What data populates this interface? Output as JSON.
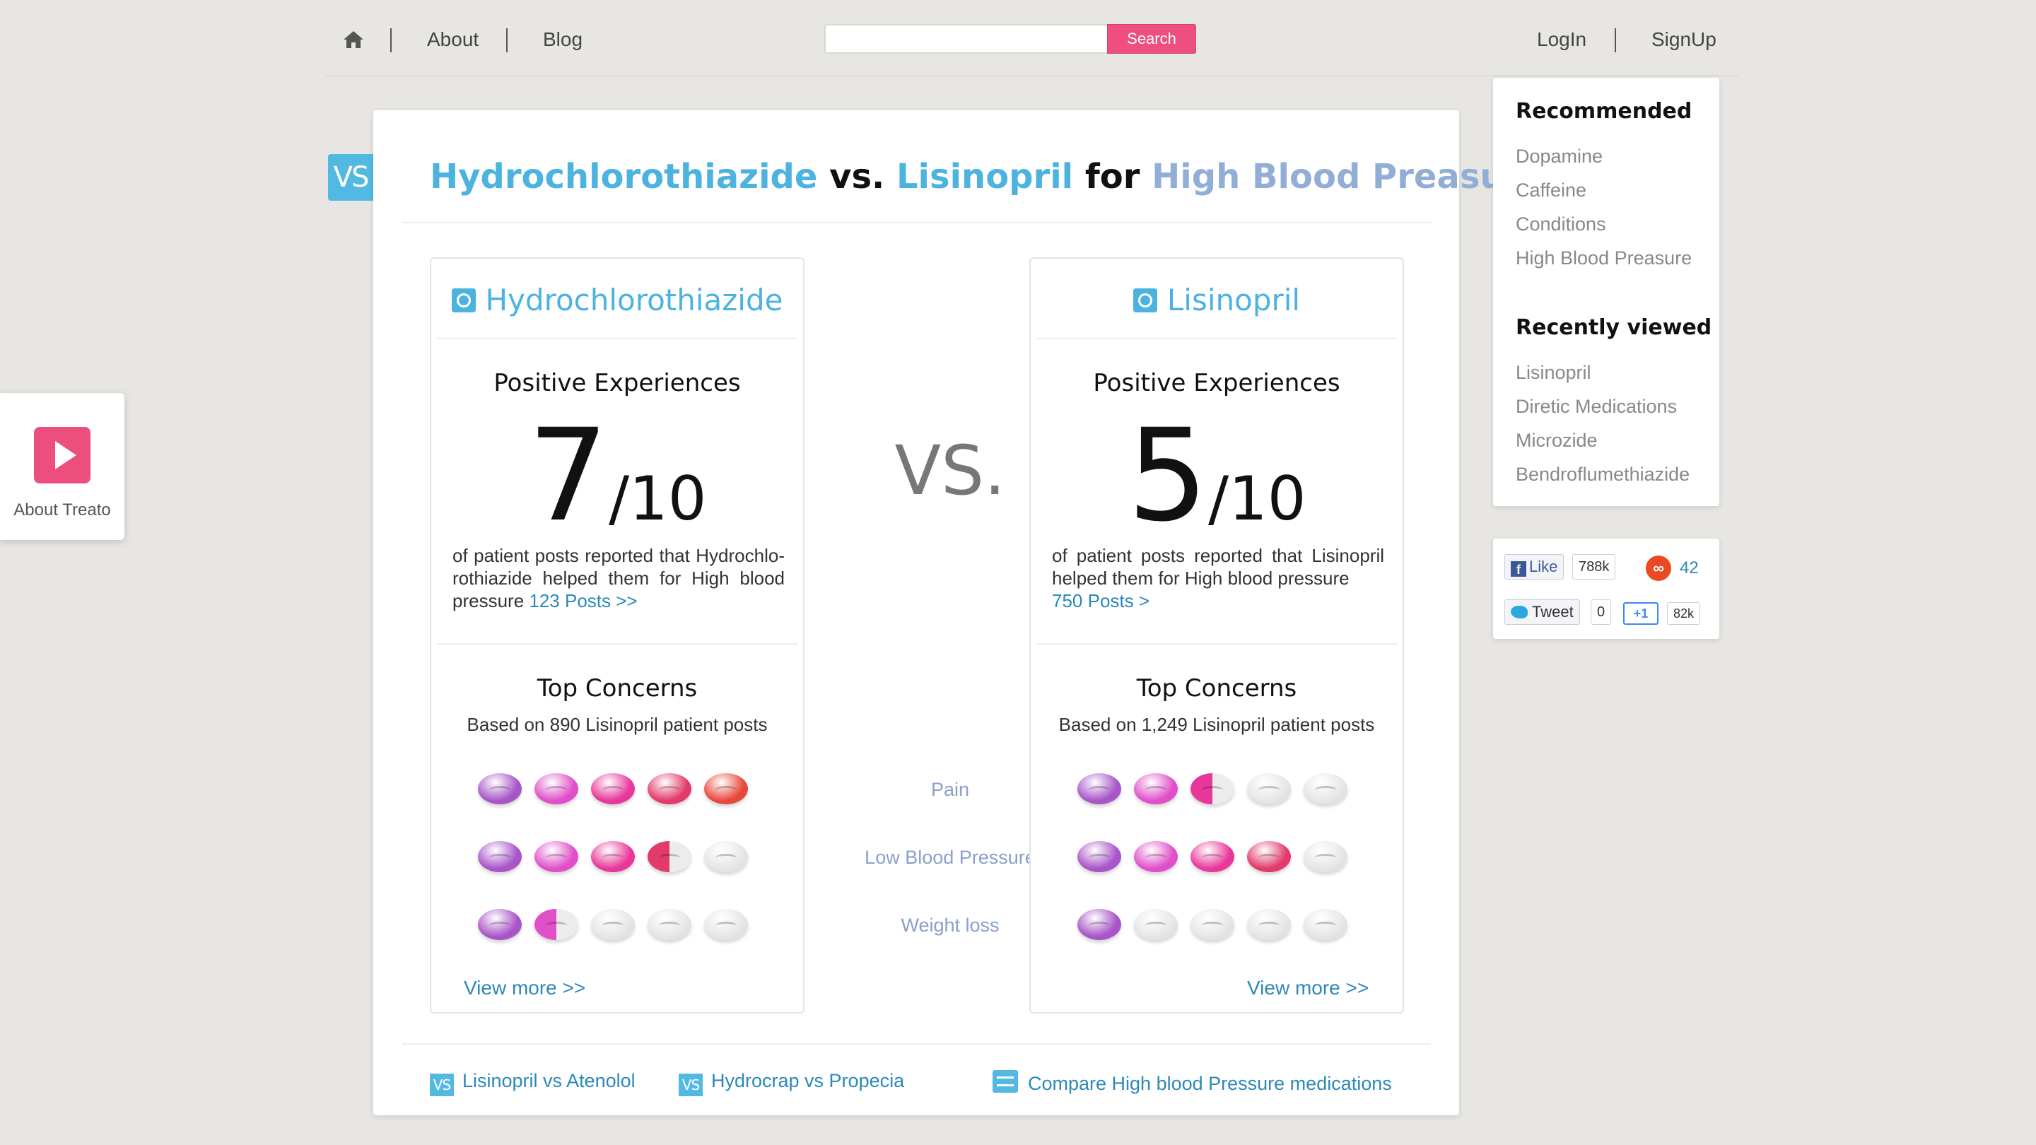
{
  "nav": {
    "about": "About",
    "blog": "Blog",
    "search_button": "Search",
    "search_placeholder": "",
    "login": "LogIn",
    "signup": "SignUp"
  },
  "about_widget": {
    "label": "About Treato"
  },
  "title": {
    "vs_tab": "VS",
    "drug1": "Hydrochlorothiazide",
    "vs": "vs.",
    "drug2": "Lisinopril",
    "for": "for",
    "condition": "High Blood Preasure"
  },
  "vs_big": "VS.",
  "left": {
    "name": "Hydrochlorothiazide",
    "pe_title": "Positive Experiences",
    "score": "7",
    "denominator": "/10",
    "pe_text": "of patient posts reported that Hydrochlo-rothiazide helped them for High blood pressure ",
    "posts_link": "123 Posts >>",
    "tc_title": "Top Concerns",
    "tc_sub": "Based on 890 Lisinopril patient posts",
    "concern_levels": [
      5,
      3.5,
      1.5
    ],
    "view_more": "View more >>"
  },
  "right": {
    "name": "Lisinopril",
    "pe_title": "Positive Experiences",
    "score": "5",
    "denominator": "/10",
    "pe_text": "of patient posts reported that Lisinopril helped them for High blood pressure",
    "posts_link": "750 Posts >",
    "tc_title": "Top Concerns",
    "tc_sub": "Based on 1,249 Lisinopril patient posts",
    "concern_levels": [
      2.5,
      4,
      1
    ],
    "view_more": "View more >>"
  },
  "concerns": [
    "Pain",
    "Low Blood Pressure",
    "Weight loss"
  ],
  "pill_colors": [
    "#a855c8",
    "#e04fc8",
    "#e8379a",
    "#e23a6a",
    "#e8483c"
  ],
  "footer": {
    "link1": "Lisinopril vs Atenolol",
    "link2": "Hydrocrap vs Propecia",
    "link3": "Compare High blood Pressure medications",
    "vs_mini": "VS"
  },
  "sidebar": {
    "recommended_title": "Recommended",
    "recommended": [
      "Dopamine",
      "Caffeine",
      "Conditions",
      "High Blood Preasure"
    ],
    "recent_title": "Recently viewed",
    "recent": [
      "Lisinopril",
      "Diretic Medications",
      "Microzide",
      "Bendroflumethiazide"
    ]
  },
  "social": {
    "fb_like": "Like",
    "fb_count": "788k",
    "stumble_count": "42",
    "tweet": "Tweet",
    "tweet_count": "0",
    "gplus": "+1",
    "gplus_count": "82k"
  }
}
